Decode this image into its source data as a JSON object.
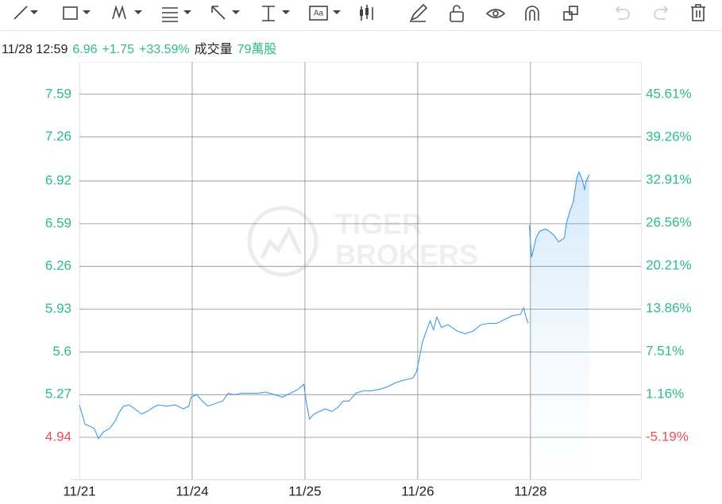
{
  "header": {
    "time": "11/28 12:59",
    "price": "6.96",
    "change": "+1.75",
    "change_pct": "+33.59%",
    "volume_label": "成交量",
    "volume": "79萬股"
  },
  "chart_data": {
    "type": "line",
    "watermark": [
      "TIGER",
      "BROKERS"
    ],
    "xlim": [
      0,
      4.98
    ],
    "xticks": [
      {
        "value": 0,
        "label": "11/21"
      },
      {
        "value": 1,
        "label": "11/24"
      },
      {
        "value": 2,
        "label": "11/25"
      },
      {
        "value": 3,
        "label": "11/26"
      },
      {
        "value": 4,
        "label": "11/28"
      }
    ],
    "ylim": [
      4.615,
      7.84
    ],
    "yticks": [
      4.94,
      5.27,
      5.6,
      5.93,
      6.26,
      6.59,
      6.92,
      7.26,
      7.59
    ],
    "ytick_colors": [
      "#e8505b",
      "#2dbd85",
      "#2dbd85",
      "#2dbd85",
      "#2dbd85",
      "#2dbd85",
      "#2dbd85",
      "#2dbd85",
      "#2dbd85"
    ],
    "y2lim": [
      -11.42,
      50.43
    ],
    "y2ticks": [
      {
        "value": -5.19,
        "label": "-5.19%"
      },
      {
        "value": 1.16,
        "label": "1.16%"
      },
      {
        "value": 7.51,
        "label": "7.51%"
      },
      {
        "value": 13.86,
        "label": "13.86%"
      },
      {
        "value": 20.21,
        "label": "20.21%"
      },
      {
        "value": 26.56,
        "label": "26.56%"
      },
      {
        "value": 32.91,
        "label": "32.91%"
      },
      {
        "value": 39.26,
        "label": "39.26%"
      },
      {
        "value": 45.61,
        "label": "45.61%"
      }
    ],
    "y2tick_colors": [
      "#e8505b",
      "#2dbd85",
      "#2dbd85",
      "#2dbd85",
      "#2dbd85",
      "#2dbd85",
      "#2dbd85",
      "#2dbd85",
      "#2dbd85"
    ],
    "grid": true,
    "series": [
      {
        "color": "#3d9be9",
        "fill": false,
        "x": [
          0,
          0.03,
          0.05,
          0.08,
          0.13,
          0.17,
          0.21,
          0.27,
          0.32,
          0.35,
          0.39,
          0.44,
          0.49,
          0.55,
          0.6,
          0.65,
          0.7,
          0.77,
          0.85,
          0.92,
          0.97,
          0.99,
          1.04,
          1.09,
          1.14,
          1.2,
          1.27,
          1.32,
          1.37,
          1.44,
          1.51,
          1.58,
          1.65,
          1.73,
          1.8,
          1.87,
          1.94,
          1.99,
          2.01,
          2.04,
          2.08,
          2.13,
          2.18,
          2.24,
          2.29,
          2.34,
          2.39,
          2.45,
          2.52,
          2.59,
          2.66,
          2.73,
          2.8,
          2.87,
          2.92,
          2.96,
          2.99,
          3.01,
          3.04,
          3.08,
          3.11,
          3.14,
          3.17,
          3.21,
          3.27,
          3.35,
          3.42,
          3.49,
          3.56,
          3.63,
          3.7,
          3.77,
          3.84,
          3.91,
          3.94,
          3.96,
          3.98
        ],
        "values": [
          5.19,
          5.1,
          5.04,
          5.03,
          5.01,
          4.93,
          4.98,
          5.01,
          5.07,
          5.13,
          5.18,
          5.19,
          5.16,
          5.12,
          5.14,
          5.17,
          5.19,
          5.18,
          5.19,
          5.16,
          5.18,
          5.25,
          5.27,
          5.22,
          5.18,
          5.2,
          5.22,
          5.28,
          5.27,
          5.28,
          5.28,
          5.28,
          5.29,
          5.27,
          5.25,
          5.28,
          5.31,
          5.35,
          5.22,
          5.08,
          5.12,
          5.14,
          5.16,
          5.14,
          5.17,
          5.22,
          5.22,
          5.28,
          5.3,
          5.3,
          5.31,
          5.33,
          5.36,
          5.38,
          5.39,
          5.4,
          5.45,
          5.53,
          5.67,
          5.77,
          5.84,
          5.77,
          5.87,
          5.79,
          5.81,
          5.76,
          5.74,
          5.76,
          5.81,
          5.82,
          5.82,
          5.85,
          5.88,
          5.89,
          5.94,
          5.87,
          5.82
        ]
      },
      {
        "color": "#3d9be9",
        "fill": true,
        "x": [
          3.99,
          4.01,
          4.05,
          4.08,
          4.13,
          4.17,
          4.21,
          4.25,
          4.3,
          4.32,
          4.35,
          4.38,
          4.41,
          4.43,
          4.46,
          4.48,
          4.49,
          4.52
        ],
        "values": [
          6.58,
          6.33,
          6.48,
          6.53,
          6.55,
          6.53,
          6.5,
          6.45,
          6.48,
          6.6,
          6.69,
          6.76,
          6.94,
          6.99,
          6.93,
          6.85,
          6.91,
          6.97
        ]
      }
    ]
  }
}
